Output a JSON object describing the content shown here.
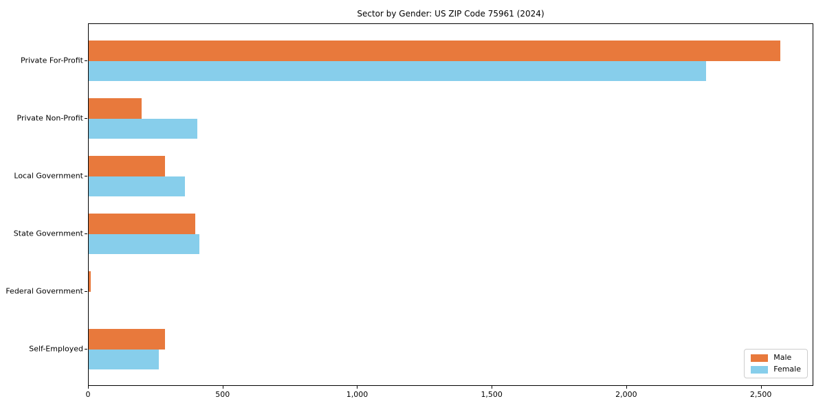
{
  "title": "Sector by Gender: US ZIP Code 75961 (2024)",
  "chart_data": {
    "type": "bar",
    "orientation": "horizontal",
    "title": "Sector by Gender: US ZIP Code 75961 (2024)",
    "xlabel": "",
    "ylabel": "",
    "categories": [
      "Private For-Profit",
      "Private Non-Profit",
      "Local Government",
      "State Government",
      "Federal Government",
      "Self-Employed"
    ],
    "series": [
      {
        "name": "Male",
        "color": "#E8793C",
        "values": [
          2570,
          196,
          283,
          397,
          8,
          283
        ]
      },
      {
        "name": "Female",
        "color": "#87CEEB",
        "values": [
          2293,
          404,
          357,
          411,
          0,
          261
        ]
      }
    ],
    "xlim": [
      0,
      2695
    ],
    "x_ticks": [
      0,
      500,
      1000,
      1500,
      2000,
      2500
    ],
    "x_tick_labels": [
      "0",
      "500",
      "1,000",
      "1,500",
      "2,000",
      "2,500"
    ],
    "legend_position": "lower right",
    "grid": false,
    "background_color": "#ffffff",
    "frame_color": "#000000"
  }
}
